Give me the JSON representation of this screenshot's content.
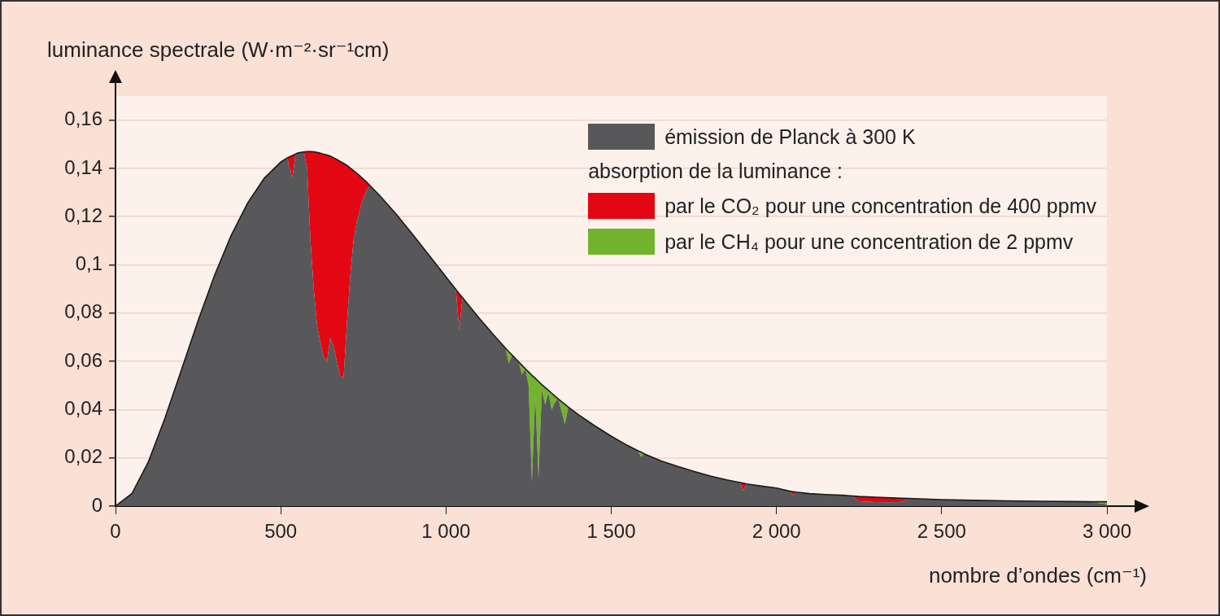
{
  "chart_data": {
    "type": "area",
    "stacked": true,
    "y_label": "luminance spectrale (W·m⁻²·sr⁻¹cm)",
    "x_label": "nombre d’ondes (cm⁻¹)",
    "annotation": "absorption de la luminance :",
    "x": [
      0,
      50,
      100,
      150,
      200,
      250,
      300,
      350,
      400,
      450,
      500,
      520,
      535,
      545,
      550,
      560,
      570,
      580,
      590,
      600,
      610,
      620,
      630,
      640,
      650,
      660,
      670,
      680,
      690,
      700,
      710,
      720,
      730,
      740,
      750,
      760,
      770,
      800,
      850,
      900,
      950,
      1000,
      1030,
      1040,
      1050,
      1100,
      1150,
      1180,
      1190,
      1200,
      1210,
      1220,
      1230,
      1240,
      1250,
      1260,
      1270,
      1280,
      1290,
      1300,
      1310,
      1320,
      1330,
      1340,
      1350,
      1360,
      1370,
      1400,
      1450,
      1500,
      1550,
      1580,
      1590,
      1600,
      1650,
      1700,
      1750,
      1800,
      1850,
      1890,
      1900,
      1910,
      1950,
      2000,
      2040,
      2050,
      2060,
      2100,
      2150,
      2200,
      2230,
      2250,
      2300,
      2350,
      2380,
      2400,
      2500,
      2600,
      2700,
      2800,
      2900,
      2950,
      3000
    ],
    "series": [
      {
        "name": "émission de Planck à 300 K",
        "color": "#58585a",
        "values": [
          0,
          0.0053,
          0.0185,
          0.0366,
          0.0567,
          0.0769,
          0.0958,
          0.1122,
          0.1257,
          0.1359,
          0.1426,
          0.1444,
          0.136,
          0.146,
          0.1463,
          0.1466,
          0.1468,
          0.14,
          0.11,
          0.09,
          0.075,
          0.068,
          0.062,
          0.06,
          0.07,
          0.066,
          0.06,
          0.054,
          0.053,
          0.075,
          0.095,
          0.11,
          0.118,
          0.123,
          0.128,
          0.131,
          0.1329,
          0.1287,
          0.1209,
          0.1125,
          0.1038,
          0.095,
          0.0898,
          0.073,
          0.0864,
          0.078,
          0.0701,
          0.0655,
          0.059,
          0.0626,
          0.0612,
          0.0598,
          0.0545,
          0.057,
          0.05,
          0.01,
          0.046,
          0.012,
          0.048,
          0.042,
          0.047,
          0.04,
          0.043,
          0.0444,
          0.039,
          0.034,
          0.0411,
          0.038,
          0.0333,
          0.029,
          0.0251,
          0.023,
          0.0205,
          0.0217,
          0.0188,
          0.0165,
          0.0144,
          0.0125,
          0.0109,
          0.0098,
          0.0065,
          0.0092,
          0.0084,
          0.0075,
          0.0062,
          0.0045,
          0.0058,
          0.0052,
          0.0048,
          0.0045,
          0.0042,
          0.002,
          0.0017,
          0.0016,
          0.0018,
          0.0032,
          0.0027,
          0.0024,
          0.0022,
          0.002,
          0.0019,
          0.0018,
          0.0008
        ]
      },
      {
        "name": "par le CO₂ pour une concentration de 400 ppmv",
        "color": "#e30613",
        "values": [
          0,
          0,
          0,
          0,
          0,
          0,
          0,
          0,
          0,
          0,
          0,
          0,
          0.0093,
          0,
          0,
          0,
          0,
          0.007,
          0.037,
          0.0569,
          0.0716,
          0.0783,
          0.0839,
          0.0855,
          0.0751,
          0.0784,
          0.0837,
          0.0889,
          0.0891,
          0.0663,
          0.0452,
          0.0291,
          0.02,
          0.0138,
          0.0076,
          0.0033,
          0,
          0,
          0,
          0,
          0,
          0,
          0,
          0.015,
          0,
          0,
          0,
          0,
          0,
          0,
          0,
          0,
          0,
          0,
          0,
          0,
          0,
          0,
          0,
          0,
          0,
          0,
          0,
          0,
          0,
          0,
          0,
          0,
          0,
          0,
          0,
          0,
          0,
          0,
          0,
          0,
          0,
          0,
          0,
          0,
          0.003,
          0,
          0,
          0,
          0,
          0.0015,
          0,
          0,
          0,
          0,
          0,
          0.002,
          0.002,
          0.0018,
          0.0015,
          0,
          0,
          0,
          0,
          0,
          0,
          0,
          0
        ]
      },
      {
        "name": "par le CH₄ pour une concentration de 2 ppmv",
        "color": "#72b42d",
        "values": [
          0,
          0,
          0,
          0,
          0,
          0,
          0,
          0,
          0,
          0,
          0,
          0,
          0,
          0,
          0,
          0,
          0,
          0,
          0,
          0,
          0,
          0,
          0,
          0,
          0,
          0,
          0,
          0,
          0,
          0,
          0,
          0,
          0,
          0,
          0,
          0,
          0,
          0,
          0,
          0,
          0,
          0,
          0,
          0,
          0,
          0,
          0,
          0,
          0.005,
          0,
          0,
          0,
          0.0039,
          0,
          0.0056,
          0.0443,
          0.007,
          0.0397,
          0.0024,
          0.0072,
          0.001,
          0.0068,
          0.0026,
          0,
          0.0043,
          0.0082,
          0,
          0,
          0,
          0,
          0,
          0,
          0.0019,
          0,
          0,
          0,
          0,
          0,
          0,
          0,
          0,
          0,
          0,
          0,
          0,
          0,
          0,
          0,
          0,
          0,
          0,
          0,
          0,
          0,
          0,
          0,
          0,
          0,
          0,
          0,
          0,
          0,
          0.001
        ]
      }
    ],
    "xlim": [
      0,
      3000
    ],
    "xticks": [
      0,
      500,
      {
        "value": 1000,
        "label": "1 000"
      },
      {
        "value": 1500,
        "label": "1 500"
      },
      {
        "value": 2000,
        "label": "2 000"
      },
      {
        "value": 2500,
        "label": "2 500"
      },
      {
        "value": 3000,
        "label": "3 000"
      }
    ],
    "ylim": [
      0,
      0.17
    ],
    "yticks": [
      0,
      {
        "value": 0.02,
        "label": "0,02"
      },
      {
        "value": 0.04,
        "label": "0,04"
      },
      {
        "value": 0.06,
        "label": "0,06"
      },
      {
        "value": 0.08,
        "label": "0,08"
      },
      {
        "value": 0.1,
        "label": "0,1"
      },
      {
        "value": 0.12,
        "label": "0,12"
      },
      {
        "value": 0.14,
        "label": "0,14"
      },
      {
        "value": 0.16,
        "label": "0,16"
      }
    ],
    "grid": "y",
    "legend": "top-right"
  }
}
